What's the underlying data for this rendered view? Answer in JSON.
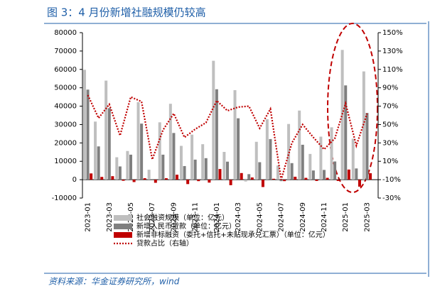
{
  "chart_data": {
    "type": "bar",
    "title": "图 3：4 月份新增社融规模仍较高",
    "source": "资料来源：华金证券研究所，wind",
    "categories": [
      "2023-01",
      null,
      "2023-03",
      null,
      "2023-05",
      null,
      "2023-07",
      null,
      "2023-09",
      null,
      "2023-11",
      null,
      "2024-01",
      null,
      "2024-03",
      null,
      "2024-05",
      null,
      "2024-07",
      null,
      "2024-09",
      null,
      "2024-11",
      null,
      "2025-01",
      null,
      "2025-03"
    ],
    "series": [
      {
        "name": "社会融资规模（单位：亿元）",
        "color": "#bfbfbf",
        "values": [
          59800,
          31600,
          53900,
          12200,
          15600,
          42200,
          5400,
          31200,
          41300,
          18400,
          24500,
          19300,
          64700,
          15100,
          48700,
          -1000,
          20600,
          32900,
          7700,
          30300,
          37600,
          14000,
          23400,
          28500,
          70600,
          22300,
          58900
        ]
      },
      {
        "name": "新增人民币贷款（单位：亿元）",
        "color": "#7f7f7f",
        "values": [
          49000,
          18100,
          38900,
          7200,
          13600,
          30500,
          300,
          13600,
          25400,
          7400,
          10900,
          11700,
          49200,
          9800,
          33400,
          3000,
          9500,
          22100,
          -800,
          9000,
          19000,
          5000,
          5300,
          9900,
          51300,
          6100,
          36300
        ]
      },
      {
        "name": "新增非标融资（委托+信托+未贴现承兑汇票）（单位：亿元）",
        "color": "#c00000",
        "values": [
          3400,
          1500,
          1900,
          -600,
          -1300,
          800,
          -1700,
          800,
          2700,
          -2400,
          -800,
          -1600,
          5800,
          -3000,
          3600,
          1200,
          -4000,
          500,
          -800,
          1600,
          1000,
          -700,
          1000,
          -700,
          5500,
          -3800,
          3500
        ]
      },
      {
        "name": "贷款占比（右轴）",
        "color": "#c00000",
        "axis": "y2",
        "type": "line",
        "values": [
          82,
          57,
          72,
          38,
          80,
          75,
          12,
          44,
          62,
          36,
          45,
          52,
          76,
          65,
          69,
          70,
          46,
          67,
          -10,
          30,
          50,
          36,
          23,
          35,
          73,
          27,
          62
        ]
      }
    ],
    "ylim": [
      -10000,
      80000
    ],
    "yticks": [
      -10000,
      0,
      10000,
      20000,
      30000,
      40000,
      50000,
      60000,
      70000,
      80000
    ],
    "y2lim": [
      -30,
      150
    ],
    "y2ticks": [
      {
        "value": -30,
        "label": "-30%"
      },
      {
        "value": -10,
        "label": "-10%"
      },
      {
        "value": 10,
        "label": "10%"
      },
      {
        "value": 30,
        "label": "30%"
      },
      {
        "value": 50,
        "label": "50%"
      },
      {
        "value": 70,
        "label": "70%"
      },
      {
        "value": 90,
        "label": "90%"
      },
      {
        "value": 110,
        "label": "110%"
      },
      {
        "value": 130,
        "label": "130%"
      },
      {
        "value": 150,
        "label": "150%"
      }
    ]
  }
}
